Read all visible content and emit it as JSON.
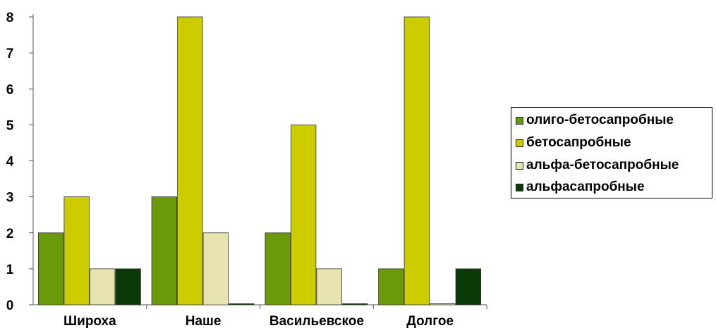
{
  "chart_data": {
    "type": "bar",
    "categories": [
      "Широха",
      "Наше",
      "Васильевское",
      "Долгое"
    ],
    "series": [
      {
        "name": "олиго-бетосапробные",
        "values": [
          2,
          3,
          2,
          1
        ],
        "color": "#6a9a0a"
      },
      {
        "name": "бетосапробные",
        "values": [
          3,
          8,
          5,
          8
        ],
        "color": "#cccc00"
      },
      {
        "name": "альфа-бетосапробные",
        "values": [
          1,
          2,
          1,
          0
        ],
        "color": "#e8e4b0"
      },
      {
        "name": "альфасапробные",
        "values": [
          1,
          0,
          0,
          1
        ],
        "color": "#0a3a05"
      }
    ],
    "yticks": [
      "0",
      "1",
      "2",
      "3",
      "4",
      "5",
      "6",
      "7",
      "8"
    ],
    "ylim": [
      0,
      8
    ],
    "grid": false,
    "legend_position": "right"
  }
}
